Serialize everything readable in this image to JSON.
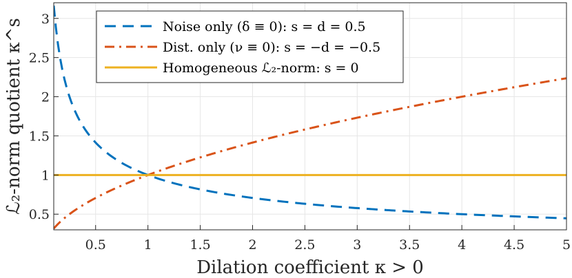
{
  "chart_data": {
    "type": "line",
    "xlabel": "Dilation coefficient κ > 0",
    "ylabel": "ℒ₂-norm quotient κ^s",
    "xlim": [
      0.1,
      5.0
    ],
    "ylim": [
      0.3,
      3.2
    ],
    "x_ticks": [
      0.5,
      1,
      1.5,
      2,
      2.5,
      3,
      3.5,
      4,
      4.5,
      5
    ],
    "x_tick_labels": [
      "0.5",
      "1",
      "1.5",
      "2",
      "2.5",
      "3",
      "3.5",
      "4",
      "4.5",
      "5"
    ],
    "y_ticks": [
      0.5,
      1,
      1.5,
      2,
      2.5,
      3
    ],
    "y_tick_labels": [
      "0.5",
      "1",
      "1.5",
      "2",
      "2.5",
      "3"
    ],
    "grid": true,
    "legend_position": "top-left",
    "series": [
      {
        "name": "Noise only (δ ≡ 0): s = d = 0.5",
        "exponent": -0.5,
        "color": "#0072BD",
        "style": "dashed",
        "x": [
          0.1,
          0.2,
          0.3,
          0.5,
          0.75,
          1,
          1.5,
          2,
          2.5,
          3,
          3.5,
          4,
          4.5,
          5
        ],
        "y": [
          3.16,
          2.24,
          1.83,
          1.41,
          1.15,
          1.0,
          0.82,
          0.71,
          0.63,
          0.58,
          0.53,
          0.5,
          0.47,
          0.45
        ]
      },
      {
        "name": "Dist. only (ν ≡ 0): s = −d = −0.5",
        "exponent": 0.5,
        "color": "#D95319",
        "style": "dashdot",
        "x": [
          0.1,
          0.2,
          0.3,
          0.5,
          0.75,
          1,
          1.5,
          2,
          2.5,
          3,
          3.5,
          4,
          4.5,
          5
        ],
        "y": [
          0.32,
          0.45,
          0.55,
          0.71,
          0.87,
          1.0,
          1.22,
          1.41,
          1.58,
          1.73,
          1.87,
          2.0,
          2.12,
          2.24
        ]
      },
      {
        "name": "Homogeneous ℒ₂-norm: s = 0",
        "exponent": 0,
        "color": "#EDB120",
        "style": "solid",
        "x": [
          0.1,
          5
        ],
        "y": [
          1.0,
          1.0
        ]
      }
    ]
  }
}
